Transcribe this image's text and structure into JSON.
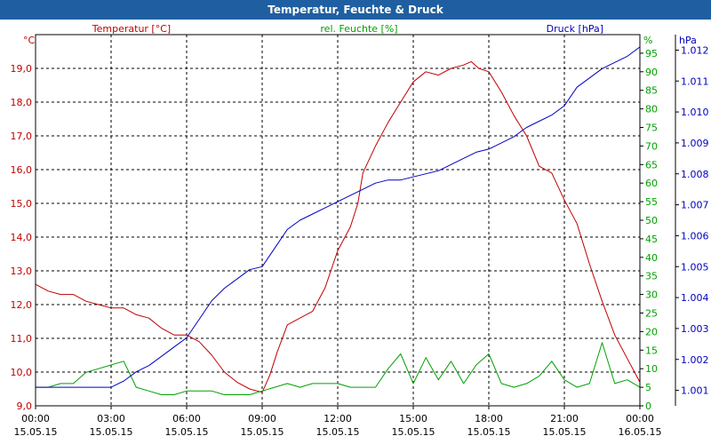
{
  "chart_data": {
    "type": "line",
    "title": "Temperatur, Feuchte & Druck",
    "axes": {
      "temperature": {
        "unit": "°C",
        "label": "Temperatur [°C]",
        "color": "#c00000",
        "range": [
          9.0,
          20.0
        ],
        "ticks": [
          9.0,
          10.0,
          11.0,
          12.0,
          13.0,
          14.0,
          15.0,
          16.0,
          17.0,
          18.0,
          19.0
        ],
        "tick_labels": [
          "9,0",
          "10,0",
          "11,0",
          "12,0",
          "13,0",
          "14,0",
          "15,0",
          "16,0",
          "17,0",
          "18,0",
          "19,0"
        ]
      },
      "humidity": {
        "unit": "%",
        "label": "rel. Feuchte [%]",
        "color": "#00a000",
        "range": [
          0,
          100
        ],
        "ticks": [
          0,
          5,
          10,
          15,
          20,
          25,
          30,
          35,
          40,
          45,
          50,
          55,
          60,
          65,
          70,
          75,
          80,
          85,
          90,
          95
        ],
        "tick_labels": [
          "0",
          "5",
          "10",
          "15",
          "20",
          "25",
          "30",
          "35",
          "40",
          "45",
          "50",
          "55",
          "60",
          "65",
          "70",
          "75",
          "80",
          "85",
          "90",
          "95"
        ]
      },
      "pressure": {
        "unit": "hPa",
        "label": "Druck [hPa]",
        "color": "#0000c0",
        "range": [
          1.0005,
          1.0125
        ],
        "ticks": [
          1.001,
          1.002,
          1.003,
          1.004,
          1.005,
          1.006,
          1.007,
          1.008,
          1.009,
          1.01,
          1.011,
          1.012
        ],
        "tick_labels": [
          "1.001",
          "1.002",
          "1.003",
          "1.004",
          "1.005",
          "1.006",
          "1.007",
          "1.008",
          "1.009",
          "1.010",
          "1.011",
          "1.012"
        ]
      }
    },
    "x_range": [
      0,
      24
    ],
    "x_ticks": [
      {
        "hour": 0,
        "time": "00:00",
        "date": "15.05.15"
      },
      {
        "hour": 3,
        "time": "03:00",
        "date": "15.05.15"
      },
      {
        "hour": 6,
        "time": "06:00",
        "date": "15.05.15"
      },
      {
        "hour": 9,
        "time": "09:00",
        "date": "15.05.15"
      },
      {
        "hour": 12,
        "time": "12:00",
        "date": "15.05.15"
      },
      {
        "hour": 15,
        "time": "15:00",
        "date": "15.05.15"
      },
      {
        "hour": 18,
        "time": "18:00",
        "date": "15.05.15"
      },
      {
        "hour": 21,
        "time": "21:00",
        "date": "15.05.15"
      },
      {
        "hour": 24,
        "time": "00:00",
        "date": "16.05.15"
      }
    ],
    "grid": true,
    "series": [
      {
        "name": "Temperatur [°C]",
        "axis": "temperature",
        "color": "#c00000",
        "x": [
          0,
          0.5,
          1.0,
          1.5,
          2.0,
          2.5,
          3.0,
          3.5,
          4.0,
          4.5,
          5.0,
          5.5,
          6.0,
          6.5,
          7.0,
          7.5,
          8.0,
          8.5,
          9.0,
          9.3,
          9.6,
          10.0,
          10.5,
          11.0,
          11.5,
          12.0,
          12.5,
          12.8,
          13.0,
          13.5,
          14.0,
          14.5,
          15.0,
          15.5,
          16.0,
          16.5,
          17.0,
          17.3,
          17.6,
          18.0,
          18.5,
          19.0,
          19.5,
          20.0,
          20.5,
          21.0,
          21.5,
          22.0,
          22.5,
          23.0,
          23.5,
          24.0
        ],
        "values": [
          12.6,
          12.4,
          12.3,
          12.3,
          12.1,
          12.0,
          11.9,
          11.9,
          11.7,
          11.6,
          11.3,
          11.1,
          11.1,
          10.9,
          10.5,
          10.0,
          9.7,
          9.5,
          9.4,
          9.9,
          10.6,
          11.4,
          11.6,
          11.8,
          12.5,
          13.6,
          14.3,
          15.0,
          15.9,
          16.7,
          17.4,
          18.0,
          18.6,
          18.9,
          18.8,
          19.0,
          19.1,
          19.2,
          19.0,
          18.9,
          18.3,
          17.6,
          17.0,
          16.1,
          15.9,
          15.1,
          14.4,
          13.2,
          12.1,
          11.1,
          10.4,
          9.7
        ]
      },
      {
        "name": "rel. Feuchte [%]",
        "axis": "humidity",
        "color": "#00a000",
        "x": [
          0,
          0.5,
          1.0,
          1.5,
          2.0,
          2.5,
          3.0,
          3.5,
          4.0,
          4.5,
          5.0,
          5.5,
          6.0,
          6.5,
          7.0,
          7.5,
          8.0,
          8.5,
          9.0,
          9.5,
          10.0,
          10.5,
          11.0,
          11.5,
          12.0,
          12.5,
          13.0,
          13.5,
          14.0,
          14.5,
          15.0,
          15.5,
          16.0,
          16.5,
          17.0,
          17.5,
          18.0,
          18.5,
          19.0,
          19.5,
          20.0,
          20.5,
          21.0,
          21.5,
          22.0,
          22.5,
          23.0,
          23.5,
          24.0
        ],
        "values": [
          5,
          5,
          6,
          6,
          9,
          10,
          11,
          12,
          5,
          4,
          3,
          3,
          4,
          4,
          4,
          3,
          3,
          3,
          4,
          5,
          6,
          5,
          6,
          6,
          6,
          5,
          5,
          5,
          10,
          14,
          6,
          13,
          7,
          12,
          6,
          11,
          14,
          6,
          5,
          6,
          8,
          12,
          7,
          5,
          6,
          17,
          6,
          7,
          5
        ]
      },
      {
        "name": "Druck [hPa]",
        "axis": "pressure",
        "color": "#0000c0",
        "x": [
          0,
          0.5,
          1.0,
          1.5,
          2.0,
          2.5,
          3.0,
          3.5,
          4.0,
          4.5,
          5.0,
          5.5,
          6.0,
          6.5,
          7.0,
          7.5,
          8.0,
          8.5,
          9.0,
          9.5,
          10.0,
          10.5,
          11.0,
          11.5,
          12.0,
          12.5,
          13.0,
          13.5,
          14.0,
          14.5,
          15.0,
          15.5,
          16.0,
          16.5,
          17.0,
          17.5,
          18.0,
          18.5,
          19.0,
          19.5,
          20.0,
          20.5,
          21.0,
          21.5,
          22.0,
          22.5,
          23.0,
          23.5,
          24.0
        ],
        "values": [
          1.0011,
          1.0011,
          1.0011,
          1.0011,
          1.0011,
          1.0011,
          1.0011,
          1.0013,
          1.0016,
          1.0018,
          1.0021,
          1.0024,
          1.0027,
          1.0033,
          1.0039,
          1.0043,
          1.0046,
          1.0049,
          1.005,
          1.0056,
          1.0062,
          1.0065,
          1.0067,
          1.0069,
          1.0071,
          1.0073,
          1.0075,
          1.0077,
          1.0078,
          1.0078,
          1.0079,
          1.008,
          1.0081,
          1.0083,
          1.0085,
          1.0087,
          1.0088,
          1.009,
          1.0092,
          1.0095,
          1.0097,
          1.0099,
          1.0102,
          1.0108,
          1.0111,
          1.0114,
          1.0116,
          1.0118,
          1.0121
        ]
      }
    ]
  }
}
